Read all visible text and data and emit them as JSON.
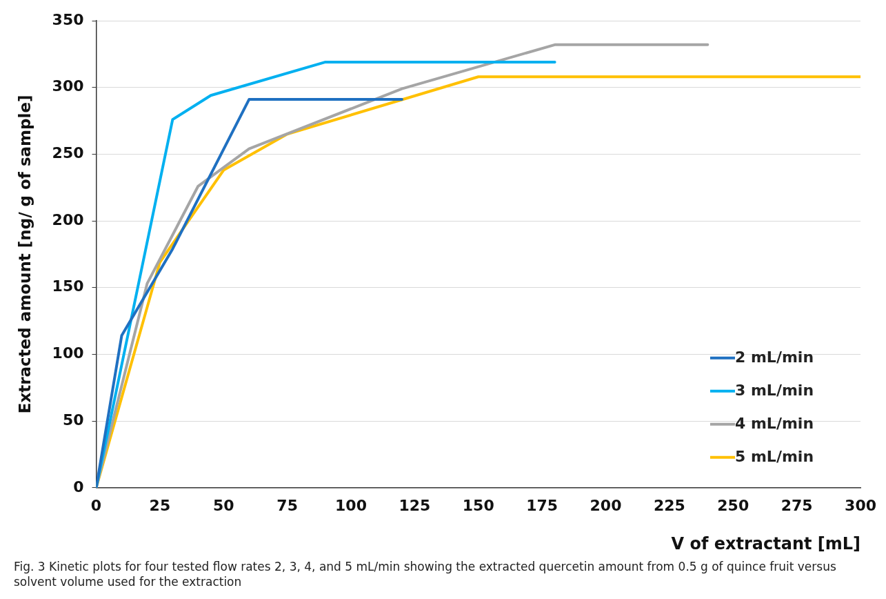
{
  "chart_data": {
    "type": "line",
    "xlabel": "V of extractant [mL]",
    "ylabel": "Extracted amount [ng/ g of sample]",
    "xlim": [
      0,
      300
    ],
    "xticks": [
      0,
      25,
      50,
      75,
      100,
      125,
      150,
      175,
      200,
      225,
      250,
      275,
      300
    ],
    "ylim": [
      0,
      350
    ],
    "yticks": [
      0,
      50,
      100,
      150,
      200,
      250,
      300,
      350
    ],
    "grid": "y",
    "legend": "bottom right",
    "marker": "none",
    "line_style": "solid",
    "series": [
      {
        "name": "2 mL/min",
        "color": "#1f70c1",
        "x": [
          0,
          10,
          30,
          60,
          120
        ],
        "values": [
          0,
          114,
          179,
          291,
          291
        ]
      },
      {
        "name": "3 mL/min",
        "color": "#00b0f0",
        "x": [
          0,
          30,
          45,
          90,
          180
        ],
        "values": [
          0,
          276,
          294,
          319,
          319
        ]
      },
      {
        "name": "4 mL/min",
        "color": "#a5a5a5",
        "x": [
          0,
          20,
          40,
          60,
          120,
          180,
          240
        ],
        "values": [
          0,
          153,
          226,
          254,
          299,
          332,
          332
        ]
      },
      {
        "name": "5 mL/min",
        "color": "#ffc000",
        "x": [
          0,
          25,
          50,
          75,
          150,
          300
        ],
        "values": [
          0,
          169,
          238,
          265,
          308,
          308
        ]
      }
    ],
    "annotations": [
      "Fig. 3  Kinetic plots for four tested flow rates 2, 3, 4, and 5 mL/min showing the extracted quercetin amount from 0.5 g of quince fruit versus solvent volume used for the extraction"
    ]
  }
}
